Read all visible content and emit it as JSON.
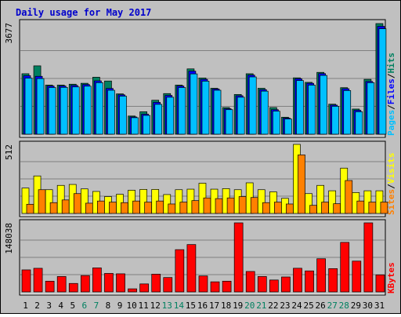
{
  "colors": {
    "background": "#c0c0c0",
    "panel": "#c0c0c0",
    "title": "#0000cc",
    "hits": "#008060",
    "files": "#0000ff",
    "pages": "#00c0ff",
    "visits": "#ffff00",
    "sites": "#ff8000",
    "kbytes": "#ff0000",
    "weekend_label": "#008060",
    "weekday_label": "#000000"
  },
  "chart_data": {
    "type": "bar",
    "title": "Daily usage for May 2017",
    "categories": [
      "1",
      "2",
      "3",
      "4",
      "5",
      "6",
      "7",
      "8",
      "9",
      "10",
      "11",
      "12",
      "13",
      "14",
      "15",
      "16",
      "17",
      "18",
      "19",
      "20",
      "21",
      "22",
      "23",
      "24",
      "25",
      "26",
      "27",
      "28",
      "29",
      "30",
      "31"
    ],
    "weekend_days": [
      "6",
      "7",
      "13",
      "14",
      "20",
      "21",
      "27",
      "28"
    ],
    "panels": [
      {
        "max_label": "3677",
        "ylim": [
          0,
          3677
        ],
        "legend": [
          "Pages",
          "/",
          "Files",
          "/",
          "Hits"
        ],
        "legend_colors": [
          "#00c0ff",
          "#000000",
          "#0000ff",
          "#000000",
          "#008060"
        ],
        "series": [
          {
            "name": "Hits",
            "values": [
              1995,
              2255,
              1620,
              1620,
              1650,
              1680,
              1880,
              1755,
              1330,
              600,
              740,
              1120,
              1340,
              1620,
              2155,
              1855,
              1515,
              880,
              1310,
              1995,
              1515,
              880,
              560,
              1860,
              1710,
              2040,
              990,
              1535,
              830,
              1810,
              3650
            ]
          },
          {
            "name": "Files",
            "values": [
              1930,
              1910,
              1590,
              1590,
              1610,
              1640,
              1760,
              1510,
              1300,
              570,
              660,
              1050,
              1280,
              1590,
              2080,
              1810,
              1490,
              840,
              1270,
              1950,
              1470,
              810,
              530,
              1830,
              1680,
              2000,
              960,
              1500,
              790,
              1740,
              3560
            ]
          },
          {
            "name": "Pages",
            "values": [
              1850,
              1835,
              1540,
              1545,
              1560,
              1585,
              1700,
              1450,
              1255,
              545,
              620,
              985,
              1220,
              1540,
              1990,
              1750,
              1450,
              810,
              1220,
              1890,
              1420,
              760,
              500,
              1770,
              1620,
              1940,
              920,
              1440,
              740,
              1700,
              3480
            ]
          }
        ]
      },
      {
        "max_label": "512",
        "ylim": [
          0,
          512
        ],
        "legend": [
          "Sites",
          "/",
          "Visits"
        ],
        "legend_colors": [
          "#ff8000",
          "#000000",
          "#ffff00"
        ],
        "series": [
          {
            "name": "Visits",
            "values": [
              188,
              278,
              176,
              208,
              215,
              182,
              163,
              125,
              142,
              172,
              178,
              178,
              140,
              176,
              180,
              224,
              180,
              184,
              176,
              227,
              176,
              160,
              112,
              512,
              147,
              208,
              168,
              336,
              155,
              168,
              168
            ]
          },
          {
            "name": "Sites",
            "values": [
              68,
              176,
              80,
              100,
              147,
              76,
              92,
              84,
              80,
              92,
              84,
              92,
              70,
              84,
              95,
              115,
              110,
              115,
              125,
              118,
              80,
              84,
              70,
              434,
              60,
              84,
              72,
              244,
              92,
              84,
              84
            ]
          }
        ]
      },
      {
        "max_label": "148038",
        "ylim": [
          0,
          148038
        ],
        "legend": [
          "KBytes"
        ],
        "legend_colors": [
          "#ff0000"
        ],
        "series": [
          {
            "name": "KBytes",
            "values": [
              47200,
              50600,
              23000,
              33000,
              18100,
              35000,
              51500,
              39600,
              38800,
              6600,
              17100,
              38000,
              30800,
              90600,
              101500,
              34200,
              21600,
              23000,
              148038,
              43800,
              33000,
              25500,
              32000,
              50700,
              45000,
              71100,
              49900,
              106200,
              66000,
              148038,
              36500
            ]
          }
        ]
      }
    ]
  }
}
